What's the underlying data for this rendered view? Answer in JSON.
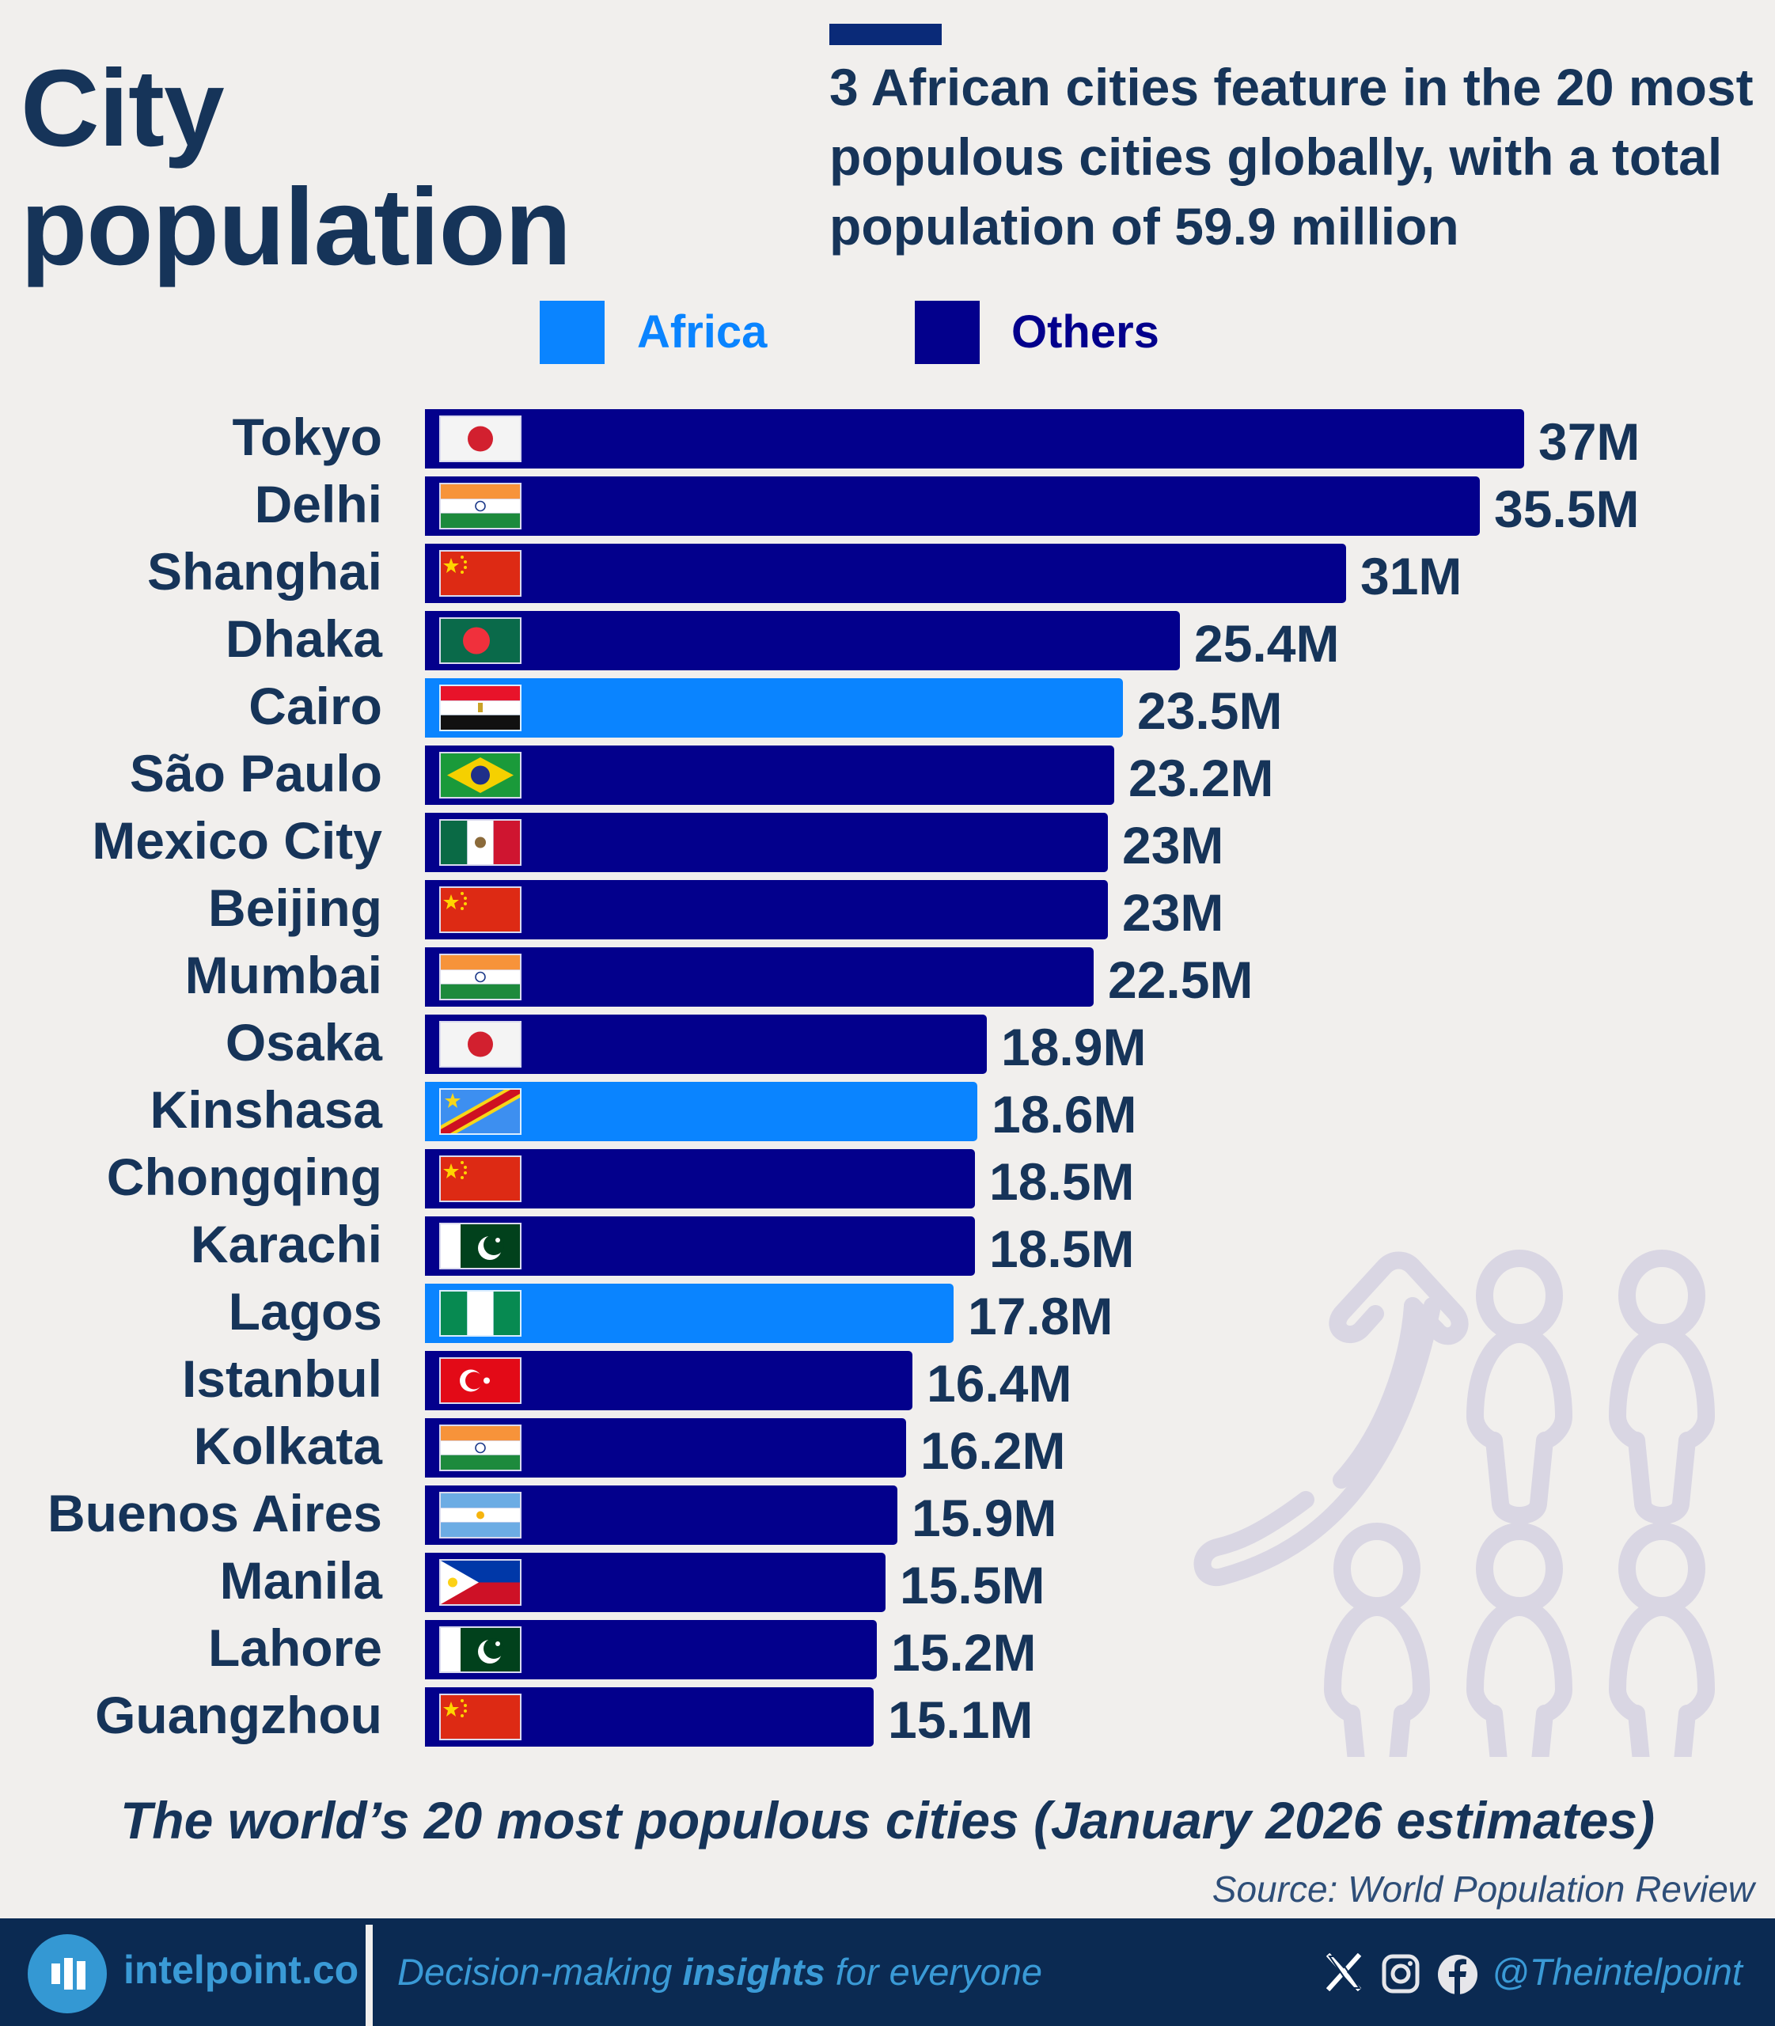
{
  "header": {
    "title_line1": "City",
    "title_line2": "population",
    "headline": "3 African cities feature in the 20 most populous cities globally, with a total population of 59.9 million"
  },
  "legend": [
    {
      "label": "Africa",
      "color": "#0a84ff"
    },
    {
      "label": "Others",
      "color": "#03008c"
    }
  ],
  "chart_data": {
    "type": "bar",
    "orientation": "horizontal",
    "title": "The world’s 20 most populous cities (January 2026 estimates)",
    "xlabel": "",
    "ylabel": "",
    "unit": "million",
    "xlim": [
      0,
      37
    ],
    "grid": false,
    "legend_position": "top",
    "categories": [
      "Tokyo",
      "Delhi",
      "Shanghai",
      "Dhaka",
      "Cairo",
      "São Paulo",
      "Mexico City",
      "Beijing",
      "Mumbai",
      "Osaka",
      "Kinshasa",
      "Chongqing",
      "Karachi",
      "Lagos",
      "Istanbul",
      "Kolkata",
      "Buenos Aires",
      "Manila",
      "Lahore",
      "Guangzhou"
    ],
    "values": [
      37,
      35.5,
      31,
      25.4,
      23.5,
      23.2,
      23,
      23,
      22.5,
      18.9,
      18.6,
      18.5,
      18.5,
      17.8,
      16.4,
      16.2,
      15.9,
      15.5,
      15.2,
      15.1
    ],
    "labels": [
      "37M",
      "35.5M",
      "31M",
      "25.4M",
      "23.5M",
      "23.2M",
      "23M",
      "23M",
      "22.5M",
      "18.9M",
      "18.6M",
      "18.5M",
      "18.5M",
      "17.8M",
      "16.4M",
      "16.2M",
      "15.9M",
      "15.5M",
      "15.2M",
      "15.1M"
    ],
    "groups": [
      "Others",
      "Others",
      "Others",
      "Others",
      "Africa",
      "Others",
      "Others",
      "Others",
      "Others",
      "Others",
      "Africa",
      "Others",
      "Others",
      "Africa",
      "Others",
      "Others",
      "Others",
      "Others",
      "Others",
      "Others"
    ],
    "flags": [
      "japan",
      "india",
      "china",
      "bangladesh",
      "egypt",
      "brazil",
      "mexico",
      "china",
      "india",
      "japan",
      "dr-congo",
      "china",
      "pakistan",
      "nigeria",
      "turkey",
      "india",
      "argentina",
      "philippines",
      "pakistan",
      "china"
    ]
  },
  "caption": "The world’s 20 most populous cities (January 2026 estimates)",
  "source": "Source: World Population Review",
  "footer": {
    "brand": "intelpoint.co",
    "tagline_pre": "Decision-making ",
    "tagline_bold": "insights",
    "tagline_post": " for everyone",
    "handle": "@Theintelpoint",
    "social_icons": [
      "x-icon",
      "instagram-icon",
      "facebook-icon"
    ]
  }
}
